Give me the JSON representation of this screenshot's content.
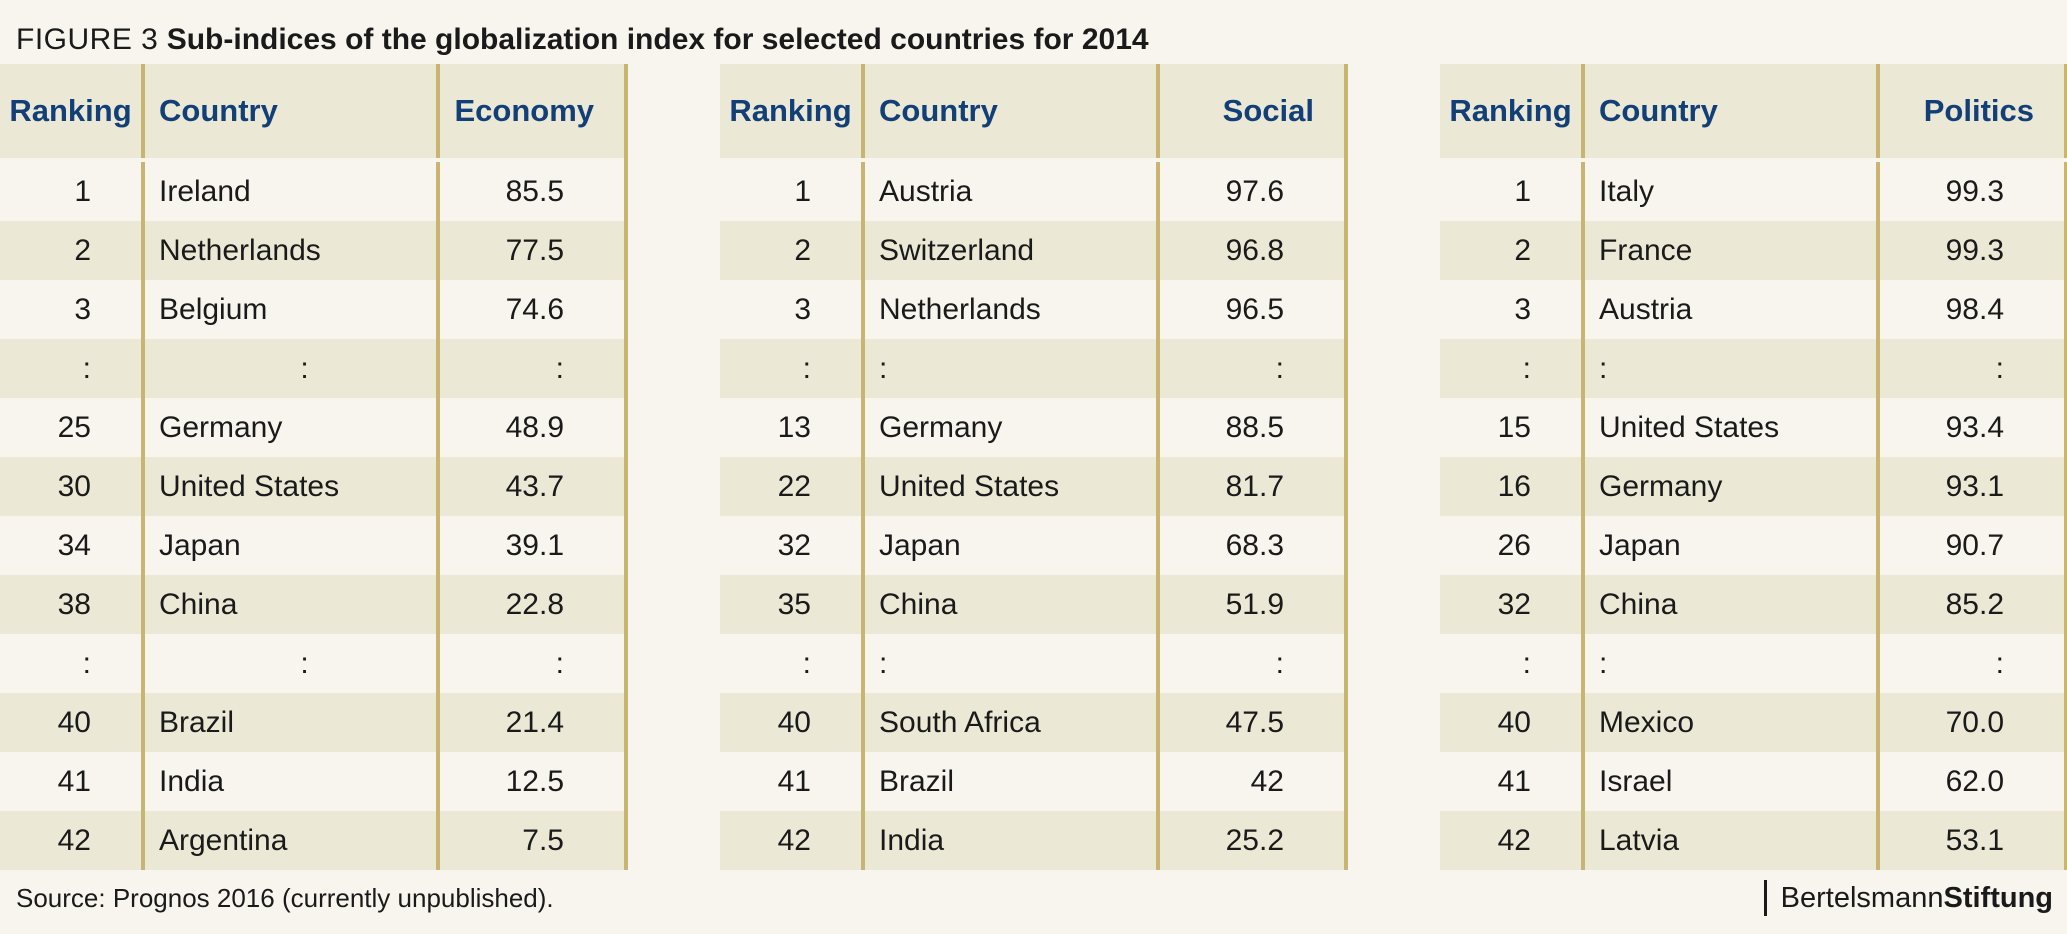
{
  "figure": {
    "label": "FIGURE 3",
    "title": "Sub-indices of the globalization index for selected countries for 2014",
    "source": "Source: Prognos 2016 (currently unpublished).",
    "brand": {
      "light": "Bertelsmann",
      "bold": "Stiftung"
    }
  },
  "colors": {
    "header_text": "#123f78",
    "band": "#ebe9d6",
    "rule": "#c9b572",
    "background": "#f8f5ef"
  },
  "chart_data": {
    "type": "table",
    "title": "Sub-indices of the globalization index for selected countries for 2014",
    "tables": [
      {
        "headers": [
          "Ranking",
          "Country",
          "Economy"
        ],
        "rows": [
          [
            "1",
            "Ireland",
            "85.5"
          ],
          [
            "2",
            "Netherlands",
            "77.5"
          ],
          [
            "3",
            "Belgium",
            "74.6"
          ],
          [
            ":",
            ":",
            ":"
          ],
          [
            "25",
            "Germany",
            "48.9"
          ],
          [
            "30",
            "United States",
            "43.7"
          ],
          [
            "34",
            "Japan",
            "39.1"
          ],
          [
            "38",
            "China",
            "22.8"
          ],
          [
            ":",
            ":",
            ":"
          ],
          [
            "40",
            "Brazil",
            "21.4"
          ],
          [
            "41",
            "India",
            "12.5"
          ],
          [
            "42",
            "Argentina",
            "7.5"
          ]
        ]
      },
      {
        "headers": [
          "Ranking",
          "Country",
          "Social"
        ],
        "rows": [
          [
            "1",
            "Austria",
            "97.6"
          ],
          [
            "2",
            "Switzerland",
            "96.8"
          ],
          [
            "3",
            "Netherlands",
            "96.5"
          ],
          [
            ":",
            ":",
            ":"
          ],
          [
            "13",
            "Germany",
            "88.5"
          ],
          [
            "22",
            "United States",
            "81.7"
          ],
          [
            "32",
            "Japan",
            "68.3"
          ],
          [
            "35",
            "China",
            "51.9"
          ],
          [
            ":",
            ":",
            ":"
          ],
          [
            "40",
            "South Africa",
            "47.5"
          ],
          [
            "41",
            "Brazil",
            "42"
          ],
          [
            "42",
            "India",
            "25.2"
          ]
        ]
      },
      {
        "headers": [
          "Ranking",
          "Country",
          "Politics"
        ],
        "rows": [
          [
            "1",
            "Italy",
            "99.3"
          ],
          [
            "2",
            "France",
            "99.3"
          ],
          [
            "3",
            "Austria",
            "98.4"
          ],
          [
            ":",
            ":",
            ":"
          ],
          [
            "15",
            "United States",
            "93.4"
          ],
          [
            "16",
            "Germany",
            "93.1"
          ],
          [
            "26",
            "Japan",
            "90.7"
          ],
          [
            "32",
            "China",
            "85.2"
          ],
          [
            ":",
            ":",
            ":"
          ],
          [
            "40",
            "Mexico",
            "70.0"
          ],
          [
            "41",
            "Israel",
            "62.0"
          ],
          [
            "42",
            "Latvia",
            "53.1"
          ]
        ]
      }
    ]
  }
}
